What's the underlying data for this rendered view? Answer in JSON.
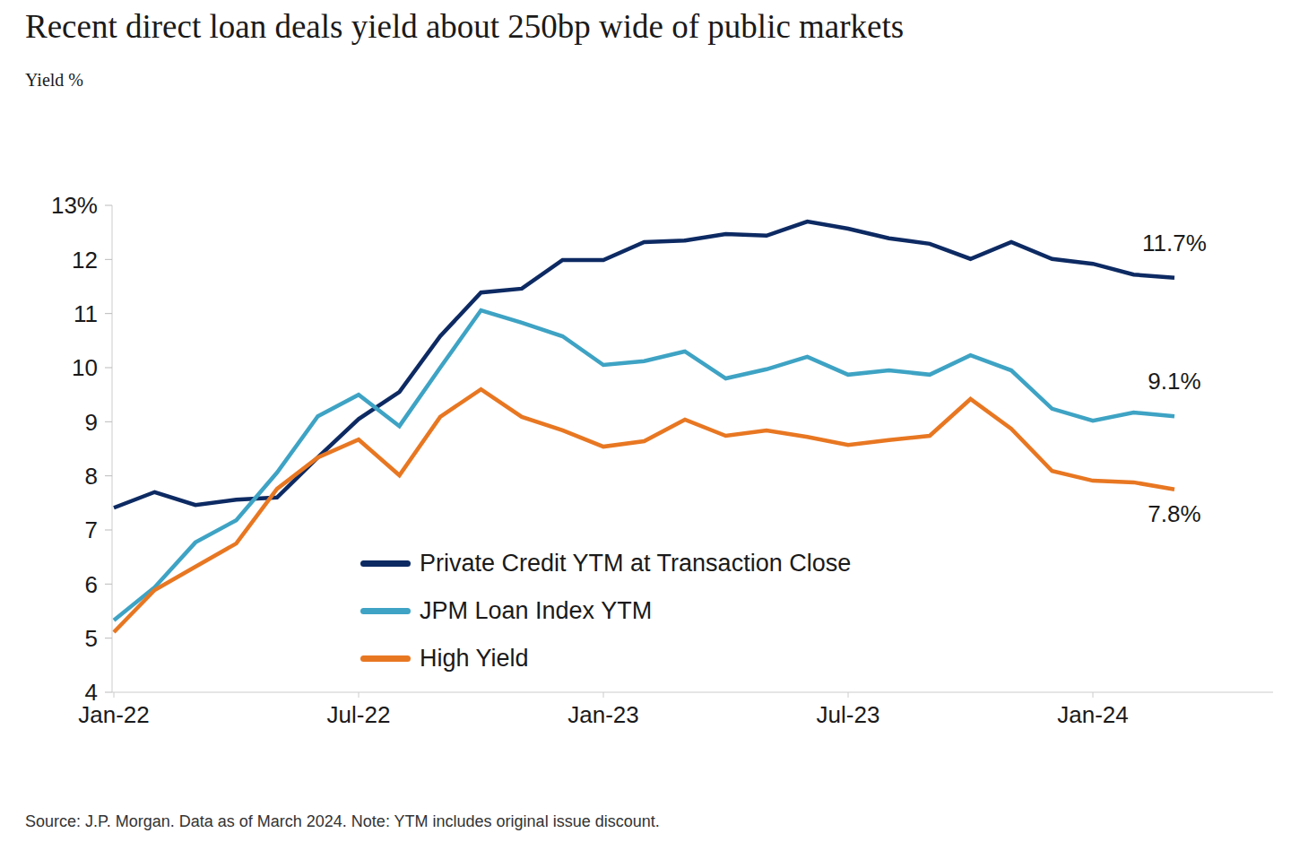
{
  "chart_data": {
    "type": "line",
    "title": "Recent direct loan deals yield about 250bp wide of public markets",
    "subtitle": "Yield %",
    "source": "Source: J.P. Morgan. Data as of March 2024. Note: YTM includes original issue discount.",
    "categories": [
      "Jan-22",
      null,
      null,
      null,
      null,
      null,
      "Jul-22",
      null,
      null,
      null,
      null,
      null,
      "Jan-23",
      null,
      null,
      null,
      null,
      null,
      "Jul-23",
      null,
      null,
      null,
      null,
      null,
      "Jan-24",
      null,
      null
    ],
    "series": [
      {
        "name": "Private Credit YTM at Transaction Close",
        "color": "#0d2a63",
        "values": [
          7.41,
          7.7,
          7.46,
          7.56,
          7.6,
          8.34,
          9.05,
          9.55,
          10.58,
          11.39,
          11.46,
          11.99,
          11.99,
          12.32,
          12.35,
          12.47,
          12.44,
          12.7,
          12.57,
          12.39,
          12.29,
          12.01,
          12.32,
          12.01,
          11.92,
          11.72,
          11.66
        ]
      },
      {
        "name": "JPM Loan Index YTM",
        "color": "#3ea3c4",
        "values": [
          5.33,
          5.94,
          6.77,
          7.18,
          8.06,
          9.1,
          9.5,
          8.92,
          10.0,
          11.06,
          10.83,
          10.58,
          10.05,
          10.12,
          10.3,
          9.8,
          9.97,
          10.2,
          9.87,
          9.95,
          9.87,
          10.23,
          9.95,
          9.24,
          9.02,
          9.17,
          9.1
        ]
      },
      {
        "name": "High Yield",
        "color": "#e87722",
        "values": [
          5.11,
          5.89,
          6.32,
          6.75,
          7.76,
          8.34,
          8.67,
          8.01,
          9.09,
          9.6,
          9.09,
          8.84,
          8.54,
          8.64,
          9.04,
          8.74,
          8.84,
          8.72,
          8.57,
          8.66,
          8.74,
          9.42,
          8.87,
          8.09,
          7.91,
          7.88,
          7.75
        ]
      }
    ],
    "annotations": [
      {
        "text": "11.7%",
        "series": "Private Credit YTM at Transaction Close"
      },
      {
        "text": "9.1%",
        "series": "JPM Loan Index YTM"
      },
      {
        "text": "7.8%",
        "series": "High Yield"
      }
    ],
    "ylim": [
      4,
      13
    ],
    "yticks": [
      4,
      5,
      6,
      7,
      8,
      9,
      10,
      11,
      12,
      {
        "value": 13,
        "label": "13%"
      }
    ],
    "grid": false
  }
}
